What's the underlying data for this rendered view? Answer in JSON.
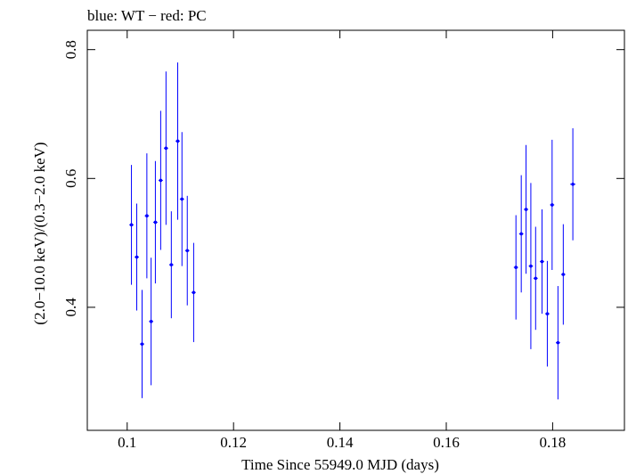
{
  "chart_data": {
    "type": "scatter",
    "title": "blue: WT − red: PC",
    "xlabel": "Time Since 55949.0 MJD (days)",
    "ylabel": "(2.0−10.0 keV)/(0.3−2.0 keV)",
    "xlim": [
      0.0925,
      0.1935
    ],
    "ylim": [
      0.209,
      0.83
    ],
    "x_ticks": [
      "0.1",
      "0.12",
      "0.14",
      "0.16",
      "0.18"
    ],
    "y_ticks": [
      "0.4",
      "0.6",
      "0.8"
    ],
    "x_tick_values": [
      0.1,
      0.12,
      0.14,
      0.16,
      0.18
    ],
    "y_tick_values": [
      0.4,
      0.6,
      0.8
    ],
    "grid": false,
    "series": [
      {
        "name": "WT",
        "color": "#0000ff",
        "points": [
          {
            "x": 0.1008,
            "xerr": 0.0004,
            "y": 0.528,
            "yerr_lo": 0.093,
            "yerr_hi": 0.093
          },
          {
            "x": 0.1018,
            "xerr": 0.0004,
            "y": 0.478,
            "yerr_lo": 0.083,
            "yerr_hi": 0.083
          },
          {
            "x": 0.1028,
            "xerr": 0.0004,
            "y": 0.343,
            "yerr_lo": 0.084,
            "yerr_hi": 0.084
          },
          {
            "x": 0.1037,
            "xerr": 0.0004,
            "y": 0.542,
            "yerr_lo": 0.097,
            "yerr_hi": 0.097
          },
          {
            "x": 0.1045,
            "xerr": 0.0004,
            "y": 0.378,
            "yerr_lo": 0.099,
            "yerr_hi": 0.099
          },
          {
            "x": 0.1053,
            "xerr": 0.0004,
            "y": 0.532,
            "yerr_lo": 0.095,
            "yerr_hi": 0.095
          },
          {
            "x": 0.1063,
            "xerr": 0.0004,
            "y": 0.597,
            "yerr_lo": 0.108,
            "yerr_hi": 0.108
          },
          {
            "x": 0.1073,
            "xerr": 0.0004,
            "y": 0.647,
            "yerr_lo": 0.119,
            "yerr_hi": 0.119
          },
          {
            "x": 0.1083,
            "xerr": 0.0004,
            "y": 0.466,
            "yerr_lo": 0.083,
            "yerr_hi": 0.083
          },
          {
            "x": 0.1095,
            "xerr": 0.0004,
            "y": 0.658,
            "yerr_lo": 0.122,
            "yerr_hi": 0.122
          },
          {
            "x": 0.1103,
            "xerr": 0.0004,
            "y": 0.568,
            "yerr_lo": 0.104,
            "yerr_hi": 0.104
          },
          {
            "x": 0.1113,
            "xerr": 0.0004,
            "y": 0.488,
            "yerr_lo": 0.085,
            "yerr_hi": 0.085
          },
          {
            "x": 0.1125,
            "xerr": 0.0004,
            "y": 0.423,
            "yerr_lo": 0.077,
            "yerr_hi": 0.077
          },
          {
            "x": 0.1731,
            "xerr": 0.0004,
            "y": 0.462,
            "yerr_lo": 0.081,
            "yerr_hi": 0.081
          },
          {
            "x": 0.1741,
            "xerr": 0.0004,
            "y": 0.514,
            "yerr_lo": 0.091,
            "yerr_hi": 0.091
          },
          {
            "x": 0.175,
            "xerr": 0.0004,
            "y": 0.552,
            "yerr_lo": 0.1,
            "yerr_hi": 0.1
          },
          {
            "x": 0.1759,
            "xerr": 0.0004,
            "y": 0.464,
            "yerr_lo": 0.129,
            "yerr_hi": 0.129
          },
          {
            "x": 0.1768,
            "xerr": 0.0004,
            "y": 0.445,
            "yerr_lo": 0.08,
            "yerr_hi": 0.08
          },
          {
            "x": 0.178,
            "xerr": 0.0004,
            "y": 0.471,
            "yerr_lo": 0.081,
            "yerr_hi": 0.081
          },
          {
            "x": 0.179,
            "xerr": 0.0004,
            "y": 0.39,
            "yerr_lo": 0.082,
            "yerr_hi": 0.082
          },
          {
            "x": 0.1799,
            "xerr": 0.0004,
            "y": 0.559,
            "yerr_lo": 0.101,
            "yerr_hi": 0.101
          },
          {
            "x": 0.181,
            "xerr": 0.0004,
            "y": 0.345,
            "yerr_lo": 0.088,
            "yerr_hi": 0.088
          },
          {
            "x": 0.182,
            "xerr": 0.0004,
            "y": 0.451,
            "yerr_lo": 0.078,
            "yerr_hi": 0.078
          },
          {
            "x": 0.1838,
            "xerr": 0.0005,
            "y": 0.591,
            "yerr_lo": 0.087,
            "yerr_hi": 0.087
          }
        ]
      }
    ]
  }
}
